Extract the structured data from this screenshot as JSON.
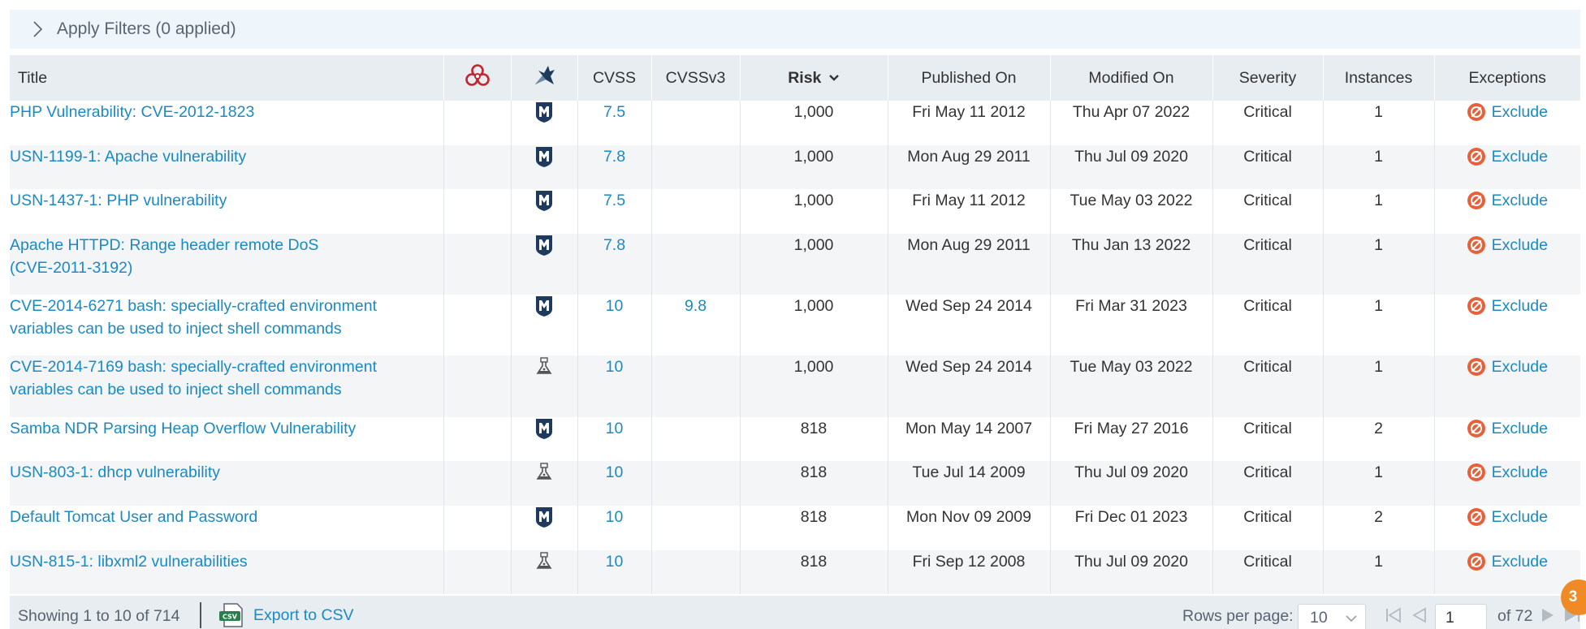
{
  "filters": {
    "label": "Apply Filters (0 applied)",
    "icon": "chevron-right-icon"
  },
  "table": {
    "columns": {
      "title": "Title",
      "malware": "malware-biohazard-icon",
      "exploit": "exploit-icon",
      "cvss": "CVSS",
      "cvssv3": "CVSSv3",
      "risk": "Risk",
      "published": "Published On",
      "modified": "Modified On",
      "severity": "Severity",
      "instances": "Instances",
      "exceptions": "Exceptions"
    },
    "sort": {
      "column": "Risk",
      "direction": "descending",
      "icon": "chevron-down-icon"
    },
    "rows": [
      {
        "title": "PHP Vulnerability: CVE-2012-1823",
        "title_line2": "",
        "exploit_icon": "metasploit-icon",
        "cvss": "7.5",
        "cvssv3": "",
        "risk": "1,000",
        "published": "Fri May 11 2012",
        "modified": "Thu Apr 07 2022",
        "severity": "Critical",
        "instances": "1",
        "exception": "Exclude"
      },
      {
        "title": "USN-1199-1: Apache vulnerability",
        "title_line2": "",
        "exploit_icon": "metasploit-icon",
        "cvss": "7.8",
        "cvssv3": "",
        "risk": "1,000",
        "published": "Mon Aug 29 2011",
        "modified": "Thu Jul 09 2020",
        "severity": "Critical",
        "instances": "1",
        "exception": "Exclude"
      },
      {
        "title": "USN-1437-1: PHP vulnerability",
        "title_line2": "",
        "exploit_icon": "metasploit-icon",
        "cvss": "7.5",
        "cvssv3": "",
        "risk": "1,000",
        "published": "Fri May 11 2012",
        "modified": "Tue May 03 2022",
        "severity": "Critical",
        "instances": "1",
        "exception": "Exclude"
      },
      {
        "title": "Apache HTTPD: Range header remote DoS",
        "title_line2": "(CVE-2011-3192)",
        "exploit_icon": "metasploit-icon",
        "cvss": "7.8",
        "cvssv3": "",
        "risk": "1,000",
        "published": "Mon Aug 29 2011",
        "modified": "Thu Jan 13 2022",
        "severity": "Critical",
        "instances": "1",
        "exception": "Exclude"
      },
      {
        "title": "CVE-2014-6271 bash: specially-crafted environment",
        "title_line2": "variables can be used to inject shell commands",
        "exploit_icon": "metasploit-icon",
        "cvss": "10",
        "cvssv3": "9.8",
        "risk": "1,000",
        "published": "Wed Sep 24 2014",
        "modified": "Fri Mar 31 2023",
        "severity": "Critical",
        "instances": "1",
        "exception": "Exclude"
      },
      {
        "title": "CVE-2014-7169 bash: specially-crafted environment",
        "title_line2": "variables can be used to inject shell commands",
        "exploit_icon": "exploit-db-icon",
        "cvss": "10",
        "cvssv3": "",
        "risk": "1,000",
        "published": "Wed Sep 24 2014",
        "modified": "Tue May 03 2022",
        "severity": "Critical",
        "instances": "1",
        "exception": "Exclude"
      },
      {
        "title": "Samba NDR Parsing Heap Overflow Vulnerability",
        "title_line2": "",
        "exploit_icon": "metasploit-icon",
        "cvss": "10",
        "cvssv3": "",
        "risk": "818",
        "published": "Mon May 14 2007",
        "modified": "Fri May 27 2016",
        "severity": "Critical",
        "instances": "2",
        "exception": "Exclude"
      },
      {
        "title": "USN-803-1: dhcp vulnerability",
        "title_line2": "",
        "exploit_icon": "exploit-db-icon",
        "cvss": "10",
        "cvssv3": "",
        "risk": "818",
        "published": "Tue Jul 14 2009",
        "modified": "Thu Jul 09 2020",
        "severity": "Critical",
        "instances": "1",
        "exception": "Exclude"
      },
      {
        "title": "Default Tomcat User and Password",
        "title_line2": "",
        "exploit_icon": "metasploit-icon",
        "cvss": "10",
        "cvssv3": "",
        "risk": "818",
        "published": "Mon Nov 09 2009",
        "modified": "Fri Dec 01 2023",
        "severity": "Critical",
        "instances": "2",
        "exception": "Exclude"
      },
      {
        "title": "USN-815-1: libxml2 vulnerabilities",
        "title_line2": "",
        "exploit_icon": "exploit-db-icon",
        "cvss": "10",
        "cvssv3": "",
        "risk": "818",
        "published": "Fri Sep 12 2008",
        "modified": "Thu Jul 09 2020",
        "severity": "Critical",
        "instances": "1",
        "exception": "Exclude"
      }
    ]
  },
  "footer": {
    "showing": "Showing 1 to 10 of 714",
    "export_label": "Export to CSV",
    "rows_per_page_label": "Rows per page:",
    "rows_per_page_value": "10",
    "page_value": "1",
    "of_pages": "of 72"
  },
  "badge": {
    "count": "3"
  },
  "colors": {
    "link": "#1a8ac4",
    "header_bg": "#e8edf1",
    "filter_bg": "#eef6fc",
    "exclude_icon": "#e8603a",
    "badge": "#f08a24",
    "metasploit": "#1f3a5f",
    "biohazard": "#c0262d"
  }
}
